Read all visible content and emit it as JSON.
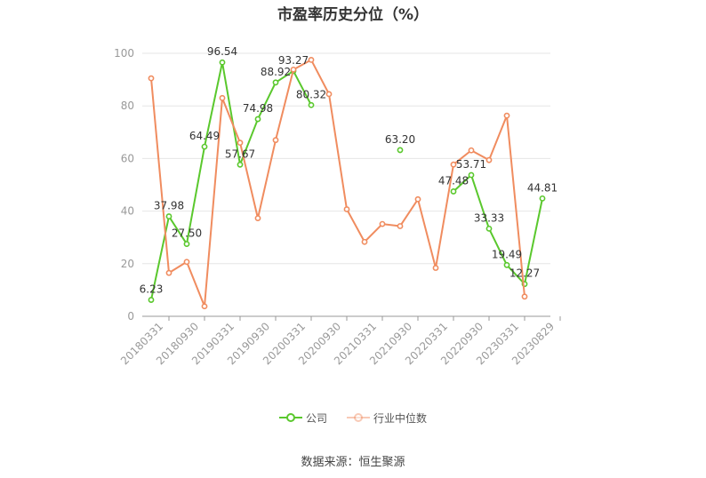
{
  "title": "市盈率历史分位（%）",
  "source": "数据来源：恒生聚源",
  "colors": {
    "company": "#5ac82d",
    "industry": "#f08c5f",
    "grid": "#e6e6e6",
    "axis": "#999999"
  },
  "chart_data": {
    "type": "line",
    "title": "市盈率历史分位（%）",
    "xlabel": "",
    "ylabel": "",
    "ylim": [
      0,
      100
    ],
    "yticks": [
      0,
      20,
      40,
      60,
      80,
      100
    ],
    "grid": true,
    "legend_position": "bottom",
    "x": [
      "20180331",
      "20180630",
      "20180930",
      "20181231",
      "20190331",
      "20190630",
      "20190930",
      "20191231",
      "20200331",
      "20200630",
      "20200930",
      "20201231",
      "20210331",
      "20210630",
      "20210930",
      "20211231",
      "20220331",
      "20220630",
      "20220930",
      "20221231",
      "20230331",
      "20230630",
      "20230829"
    ],
    "x_tick_labels": [
      "20180331",
      "20180930",
      "20190331",
      "20190930",
      "20200331",
      "20200930",
      "20210331",
      "20210930",
      "20220331",
      "20220930",
      "20230331",
      "20230829"
    ],
    "series": [
      {
        "name": "公司",
        "values": [
          6.23,
          37.98,
          27.5,
          64.49,
          96.54,
          57.67,
          74.98,
          88.92,
          93.27,
          80.32,
          null,
          null,
          null,
          null,
          63.2,
          null,
          null,
          47.48,
          53.71,
          33.33,
          19.49,
          12.27,
          44.81
        ],
        "labels": [
          "6.23",
          "37.98",
          "27.50",
          "64.49",
          "96.54",
          "57.67",
          "74.98",
          "88.92",
          "93.27",
          "80.32",
          "",
          "",
          "",
          "",
          "63.20",
          "",
          "",
          "47.48",
          "53.71",
          "33.33",
          "19.49",
          "12.27",
          "44.81"
        ]
      },
      {
        "name": "行业中位数",
        "values": [
          90.5,
          16.5,
          20.7,
          3.8,
          83.0,
          66.0,
          37.3,
          67.0,
          93.8,
          97.5,
          84.5,
          40.7,
          28.3,
          35.1,
          34.3,
          44.5,
          18.4,
          57.7,
          63.1,
          59.4,
          76.3,
          7.5,
          null
        ]
      }
    ]
  }
}
